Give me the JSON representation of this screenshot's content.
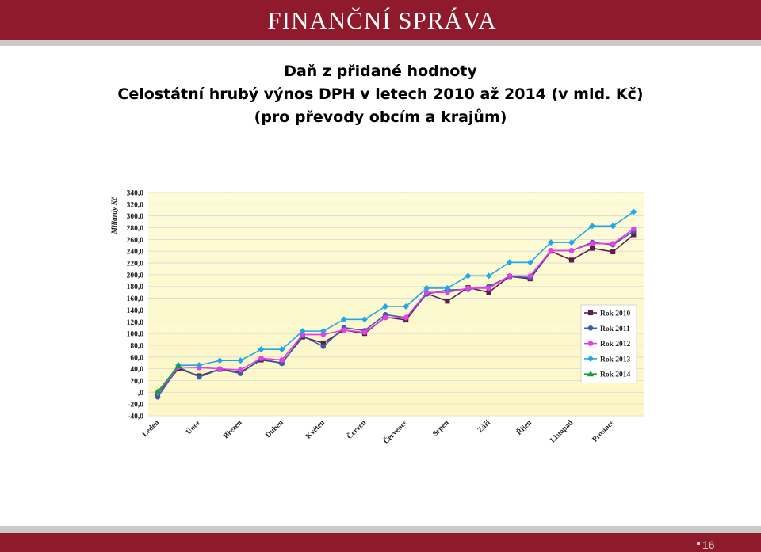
{
  "header": {
    "title": "FINANČNÍ SPRÁVA"
  },
  "slide_number": "16",
  "chart_data": {
    "type": "line",
    "title": "Daň z přidané hodnoty",
    "subtitle": [
      "Celostátní hrubý výnos DPH v letech 2010 až 2014 (v mld. Kč)",
      "(pro převody obcím a krajům)"
    ],
    "y_label": "Miliardy Kč",
    "categories": [
      "Leden",
      null,
      "Únor",
      null,
      "Březen",
      null,
      "Duben",
      null,
      "Květen",
      null,
      "Červen",
      null,
      "Červenec",
      null,
      "Srpen",
      null,
      "Září",
      null,
      "Říjen",
      null,
      "Listopad",
      null,
      "Prosinec",
      null
    ],
    "ylim": [
      -40,
      340
    ],
    "yticks": [
      {
        "value": -40,
        "label": "-40,0"
      },
      {
        "value": -20,
        "label": "-20,0"
      },
      {
        "value": 0,
        "label": ",0"
      },
      {
        "value": 20,
        "label": "20,0"
      },
      {
        "value": 40,
        "label": "40,0"
      },
      {
        "value": 60,
        "label": "60,0"
      },
      {
        "value": 80,
        "label": "80,0"
      },
      {
        "value": 100,
        "label": "100,0"
      },
      {
        "value": 120,
        "label": "120,0"
      },
      {
        "value": 140,
        "label": "140,0"
      },
      {
        "value": 160,
        "label": "160,0"
      },
      {
        "value": 180,
        "label": "180,0"
      },
      {
        "value": 200,
        "label": "200,0"
      },
      {
        "value": 220,
        "label": "220,0"
      },
      {
        "value": 240,
        "label": "240,0"
      },
      {
        "value": 260,
        "label": "260,0"
      },
      {
        "value": 280,
        "label": "280,0"
      },
      {
        "value": 300,
        "label": "300,0"
      },
      {
        "value": 320,
        "label": "320,0"
      },
      {
        "value": 340,
        "label": "340,0"
      }
    ],
    "grid": true,
    "legend": "right",
    "series": [
      {
        "name": "Rok 2010",
        "color": "#5b1f4f",
        "marker": "square",
        "values": [
          -2,
          40,
          28,
          39,
          34,
          55,
          50,
          94,
          84,
          106,
          100,
          128,
          123,
          168,
          155,
          178,
          170,
          197,
          193,
          240,
          225,
          245,
          239,
          268
        ]
      },
      {
        "name": "Rok 2011",
        "color": "#3a5da8",
        "marker": "circle",
        "values": [
          -8,
          43,
          26,
          39,
          32,
          57,
          49,
          96,
          78,
          110,
          105,
          132,
          127,
          167,
          174,
          175,
          180,
          197,
          195,
          241,
          241,
          255,
          251,
          274
        ]
      },
      {
        "name": "Rok 2012",
        "color": "#e83ee8",
        "marker": "circle",
        "values": [
          -1,
          43,
          42,
          40,
          38,
          58,
          55,
          98,
          98,
          106,
          102,
          127,
          127,
          170,
          170,
          177,
          177,
          198,
          198,
          241,
          241,
          253,
          253,
          278
        ]
      },
      {
        "name": "Rok 2013",
        "color": "#1fa9e6",
        "marker": "diamond",
        "values": [
          0,
          46,
          46,
          54,
          54,
          73,
          73,
          104,
          104,
          124,
          124,
          146,
          146,
          177,
          177,
          198,
          198,
          221,
          221,
          255,
          255,
          283,
          283,
          307
        ]
      },
      {
        "name": "Rok 2014",
        "color": "#1a9e3a",
        "marker": "triangle",
        "values": [
          1,
          45,
          null,
          null,
          null,
          null,
          null,
          null,
          null,
          null,
          null,
          null,
          null,
          null,
          null,
          null,
          null,
          null,
          null,
          null,
          null,
          null,
          null,
          null
        ]
      }
    ]
  }
}
